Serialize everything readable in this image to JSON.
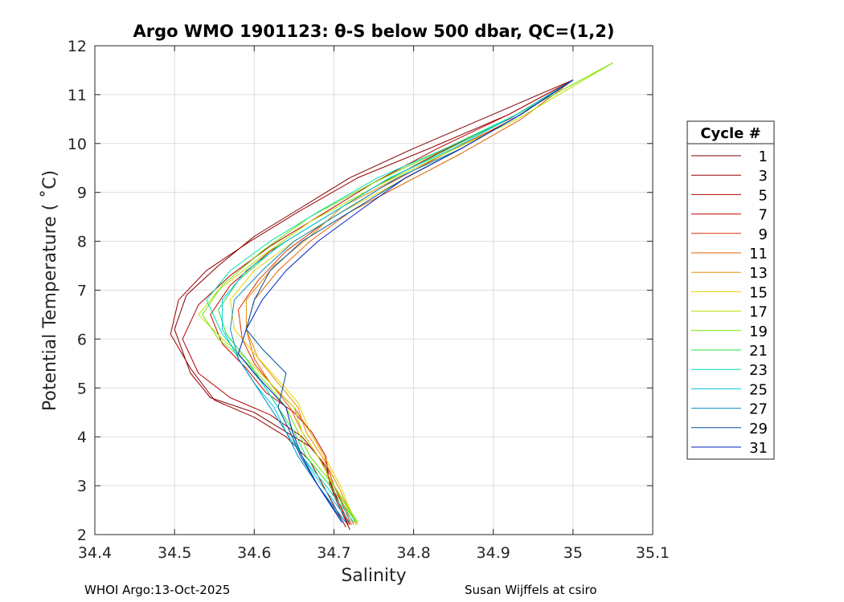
{
  "chart_data": {
    "type": "line",
    "title": "Argo WMO 1901123: θ-S below 500 dbar,  QC=(1,2)",
    "xlabel": "Salinity",
    "ylabel": "Potential Temperature ( ˚C)",
    "xlim": [
      34.4,
      35.1
    ],
    "ylim": [
      2,
      12
    ],
    "xticks": [
      34.4,
      34.5,
      34.6,
      34.7,
      34.8,
      34.9,
      35.0,
      35.1
    ],
    "xtick_labels": [
      "34.4",
      "34.5",
      "34.6",
      "34.7",
      "34.8",
      "34.9",
      "35",
      "35.1"
    ],
    "yticks": [
      2,
      3,
      4,
      5,
      6,
      7,
      8,
      9,
      10,
      11,
      12
    ],
    "ytick_labels": [
      "2",
      "3",
      "4",
      "5",
      "6",
      "7",
      "8",
      "9",
      "10",
      "11",
      "12"
    ],
    "grid": true,
    "legend": {
      "title": "Cycle #",
      "position": "outside-right",
      "entries": [
        "1",
        "3",
        "5",
        "7",
        "9",
        "11",
        "13",
        "15",
        "17",
        "19",
        "21",
        "23",
        "25",
        "27",
        "29",
        "31"
      ]
    },
    "series": [
      {
        "name": "1",
        "color": "#800000",
        "x": [
          34.72,
          34.7,
          34.69,
          34.67,
          34.64,
          34.6,
          34.545,
          34.52,
          34.5,
          34.515,
          34.555,
          34.6,
          34.66,
          34.72,
          34.8,
          34.9,
          35.0
        ],
        "y": [
          2.1,
          2.8,
          3.4,
          3.8,
          4.1,
          4.5,
          4.8,
          5.3,
          6.2,
          6.9,
          7.5,
          8.1,
          8.7,
          9.3,
          9.9,
          10.6,
          11.3
        ]
      },
      {
        "name": "3",
        "color": "#990000",
        "x": [
          34.715,
          34.69,
          34.67,
          34.64,
          34.6,
          34.55,
          34.52,
          34.495,
          34.505,
          34.54,
          34.595,
          34.655,
          34.73,
          34.82,
          34.92,
          35.0
        ],
        "y": [
          2.15,
          2.9,
          3.5,
          4.0,
          4.4,
          4.75,
          5.4,
          6.1,
          6.8,
          7.4,
          8.0,
          8.6,
          9.3,
          9.9,
          10.6,
          11.3
        ]
      },
      {
        "name": "5",
        "color": "#b30000",
        "x": [
          34.718,
          34.7,
          34.685,
          34.66,
          34.62,
          34.57,
          34.53,
          34.51,
          34.53,
          34.57,
          34.62,
          34.68,
          34.75,
          34.83,
          34.92,
          35.0
        ],
        "y": [
          2.2,
          2.9,
          3.5,
          4.0,
          4.45,
          4.8,
          5.3,
          6.0,
          6.7,
          7.3,
          7.9,
          8.5,
          9.2,
          9.9,
          10.6,
          11.3
        ]
      },
      {
        "name": "7",
        "color": "#cc0000",
        "x": [
          34.72,
          34.695,
          34.69,
          34.672,
          34.65,
          34.615,
          34.59,
          34.56,
          34.545,
          34.57,
          34.62,
          34.68,
          34.75,
          34.83,
          34.92,
          35.0
        ],
        "y": [
          2.2,
          3.0,
          3.6,
          4.1,
          4.5,
          4.9,
          5.4,
          5.9,
          6.5,
          7.1,
          7.8,
          8.4,
          9.1,
          9.8,
          10.5,
          11.3
        ]
      },
      {
        "name": "9",
        "color": "#e03000",
        "x": [
          34.722,
          34.7,
          34.688,
          34.67,
          34.65,
          34.625,
          34.6,
          34.585,
          34.58,
          34.605,
          34.64,
          34.69,
          34.76,
          34.84,
          34.925,
          35.0
        ],
        "y": [
          2.2,
          3.0,
          3.6,
          4.1,
          4.6,
          5.0,
          5.5,
          6.0,
          6.6,
          7.2,
          7.8,
          8.4,
          9.1,
          9.8,
          10.5,
          11.3
        ]
      },
      {
        "name": "11",
        "color": "#e06000",
        "x": [
          34.725,
          34.7,
          34.68,
          34.66,
          34.645,
          34.62,
          34.6,
          34.59,
          34.6,
          34.63,
          34.67,
          34.72,
          34.79,
          34.86,
          34.935,
          35.0
        ],
        "y": [
          2.2,
          3.0,
          3.6,
          4.1,
          4.6,
          5.1,
          5.6,
          6.2,
          6.8,
          7.4,
          8.0,
          8.6,
          9.2,
          9.8,
          10.5,
          11.3
        ]
      },
      {
        "name": "13",
        "color": "#e89000",
        "x": [
          34.728,
          34.705,
          34.685,
          34.665,
          34.655,
          34.63,
          34.605,
          34.59,
          34.59,
          34.625,
          34.67,
          34.71,
          34.78,
          34.86,
          34.935,
          35.0
        ],
        "y": [
          2.2,
          3.0,
          3.6,
          4.1,
          4.6,
          5.1,
          5.6,
          6.2,
          6.8,
          7.5,
          8.1,
          8.7,
          9.3,
          9.9,
          10.6,
          11.3
        ]
      },
      {
        "name": "15",
        "color": "#e8d000",
        "x": [
          34.728,
          34.708,
          34.688,
          34.67,
          34.655,
          34.628,
          34.6,
          34.575,
          34.57,
          34.6,
          34.65,
          34.71,
          34.78,
          34.86,
          34.935,
          35.0
        ],
        "y": [
          2.2,
          3.0,
          3.6,
          4.1,
          4.7,
          5.2,
          5.7,
          6.2,
          6.8,
          7.4,
          8.0,
          8.6,
          9.2,
          9.9,
          10.6,
          11.3
        ]
      },
      {
        "name": "17",
        "color": "#b8e000",
        "x": [
          34.73,
          34.7,
          34.68,
          34.66,
          34.65,
          34.62,
          34.59,
          34.56,
          34.53,
          34.555,
          34.61,
          34.67,
          34.75,
          34.84,
          34.93,
          35.05
        ],
        "y": [
          2.2,
          3.0,
          3.6,
          4.1,
          4.6,
          5.1,
          5.6,
          6.0,
          6.5,
          7.0,
          7.7,
          8.4,
          9.1,
          9.8,
          10.5,
          11.65
        ]
      },
      {
        "name": "19",
        "color": "#70e000",
        "x": [
          34.73,
          34.7,
          34.67,
          34.655,
          34.64,
          34.615,
          34.585,
          34.555,
          34.535,
          34.56,
          34.61,
          34.67,
          34.75,
          34.84,
          34.93,
          35.05
        ],
        "y": [
          2.25,
          3.0,
          3.6,
          4.1,
          4.6,
          5.1,
          5.6,
          6.0,
          6.5,
          7.1,
          7.8,
          8.5,
          9.2,
          9.9,
          10.6,
          11.65
        ]
      },
      {
        "name": "21",
        "color": "#20e040",
        "x": [
          34.728,
          34.695,
          34.665,
          34.65,
          34.63,
          34.61,
          34.59,
          34.565,
          34.555,
          34.58,
          34.63,
          34.69,
          34.76,
          34.845,
          34.93,
          35.0
        ],
        "y": [
          2.25,
          3.0,
          3.6,
          4.1,
          4.6,
          5.1,
          5.6,
          6.1,
          6.6,
          7.2,
          7.9,
          8.5,
          9.2,
          9.9,
          10.6,
          11.3
        ]
      },
      {
        "name": "23",
        "color": "#00e0b0",
        "x": [
          34.725,
          34.69,
          34.66,
          34.645,
          34.63,
          34.61,
          34.585,
          34.56,
          34.54,
          34.57,
          34.62,
          34.68,
          34.755,
          34.84,
          34.93,
          35.0
        ],
        "y": [
          2.25,
          3.0,
          3.6,
          4.1,
          4.6,
          5.1,
          5.6,
          6.1,
          6.8,
          7.4,
          8.0,
          8.6,
          9.3,
          9.9,
          10.6,
          11.3
        ]
      },
      {
        "name": "25",
        "color": "#00c8e0",
        "x": [
          34.72,
          34.685,
          34.66,
          34.64,
          34.625,
          34.6,
          34.58,
          34.56,
          34.56,
          34.59,
          34.64,
          34.7,
          34.77,
          34.85,
          34.93,
          35.0
        ],
        "y": [
          2.25,
          3.0,
          3.6,
          4.1,
          4.6,
          5.1,
          5.6,
          6.2,
          6.8,
          7.4,
          8.0,
          8.6,
          9.3,
          9.9,
          10.6,
          11.3
        ]
      },
      {
        "name": "27",
        "color": "#0090c0",
        "x": [
          34.715,
          34.68,
          34.655,
          34.64,
          34.62,
          34.6,
          34.58,
          34.57,
          34.575,
          34.61,
          34.65,
          34.71,
          34.78,
          34.86,
          34.935,
          35.0
        ],
        "y": [
          2.25,
          3.0,
          3.6,
          4.1,
          4.6,
          5.1,
          5.6,
          6.2,
          6.8,
          7.4,
          8.0,
          8.6,
          9.3,
          9.9,
          10.6,
          11.3
        ]
      },
      {
        "name": "29",
        "color": "#0050a0",
        "x": [
          34.712,
          34.68,
          34.658,
          34.645,
          34.63,
          34.64,
          34.61,
          34.59,
          34.6,
          34.62,
          34.66,
          34.72,
          34.79,
          34.86,
          34.935,
          35.0
        ],
        "y": [
          2.25,
          3.0,
          3.6,
          4.1,
          4.6,
          5.3,
          5.8,
          6.2,
          6.8,
          7.4,
          8.0,
          8.6,
          9.3,
          9.9,
          10.6,
          11.3
        ]
      },
      {
        "name": "31",
        "color": "#0020c0",
        "x": [
          34.71,
          34.68,
          34.66,
          34.648,
          34.64,
          34.6,
          34.58,
          34.59,
          34.61,
          34.64,
          34.68,
          34.73,
          34.79,
          34.86,
          34.935,
          35.0
        ],
        "y": [
          2.25,
          3.0,
          3.6,
          4.1,
          4.6,
          5.3,
          5.7,
          6.2,
          6.8,
          7.4,
          8.0,
          8.6,
          9.3,
          9.9,
          10.6,
          11.3
        ]
      }
    ]
  },
  "footer": {
    "left": "WHOI Argo:13-Oct-2025",
    "right": "Susan Wijffels at csiro"
  }
}
